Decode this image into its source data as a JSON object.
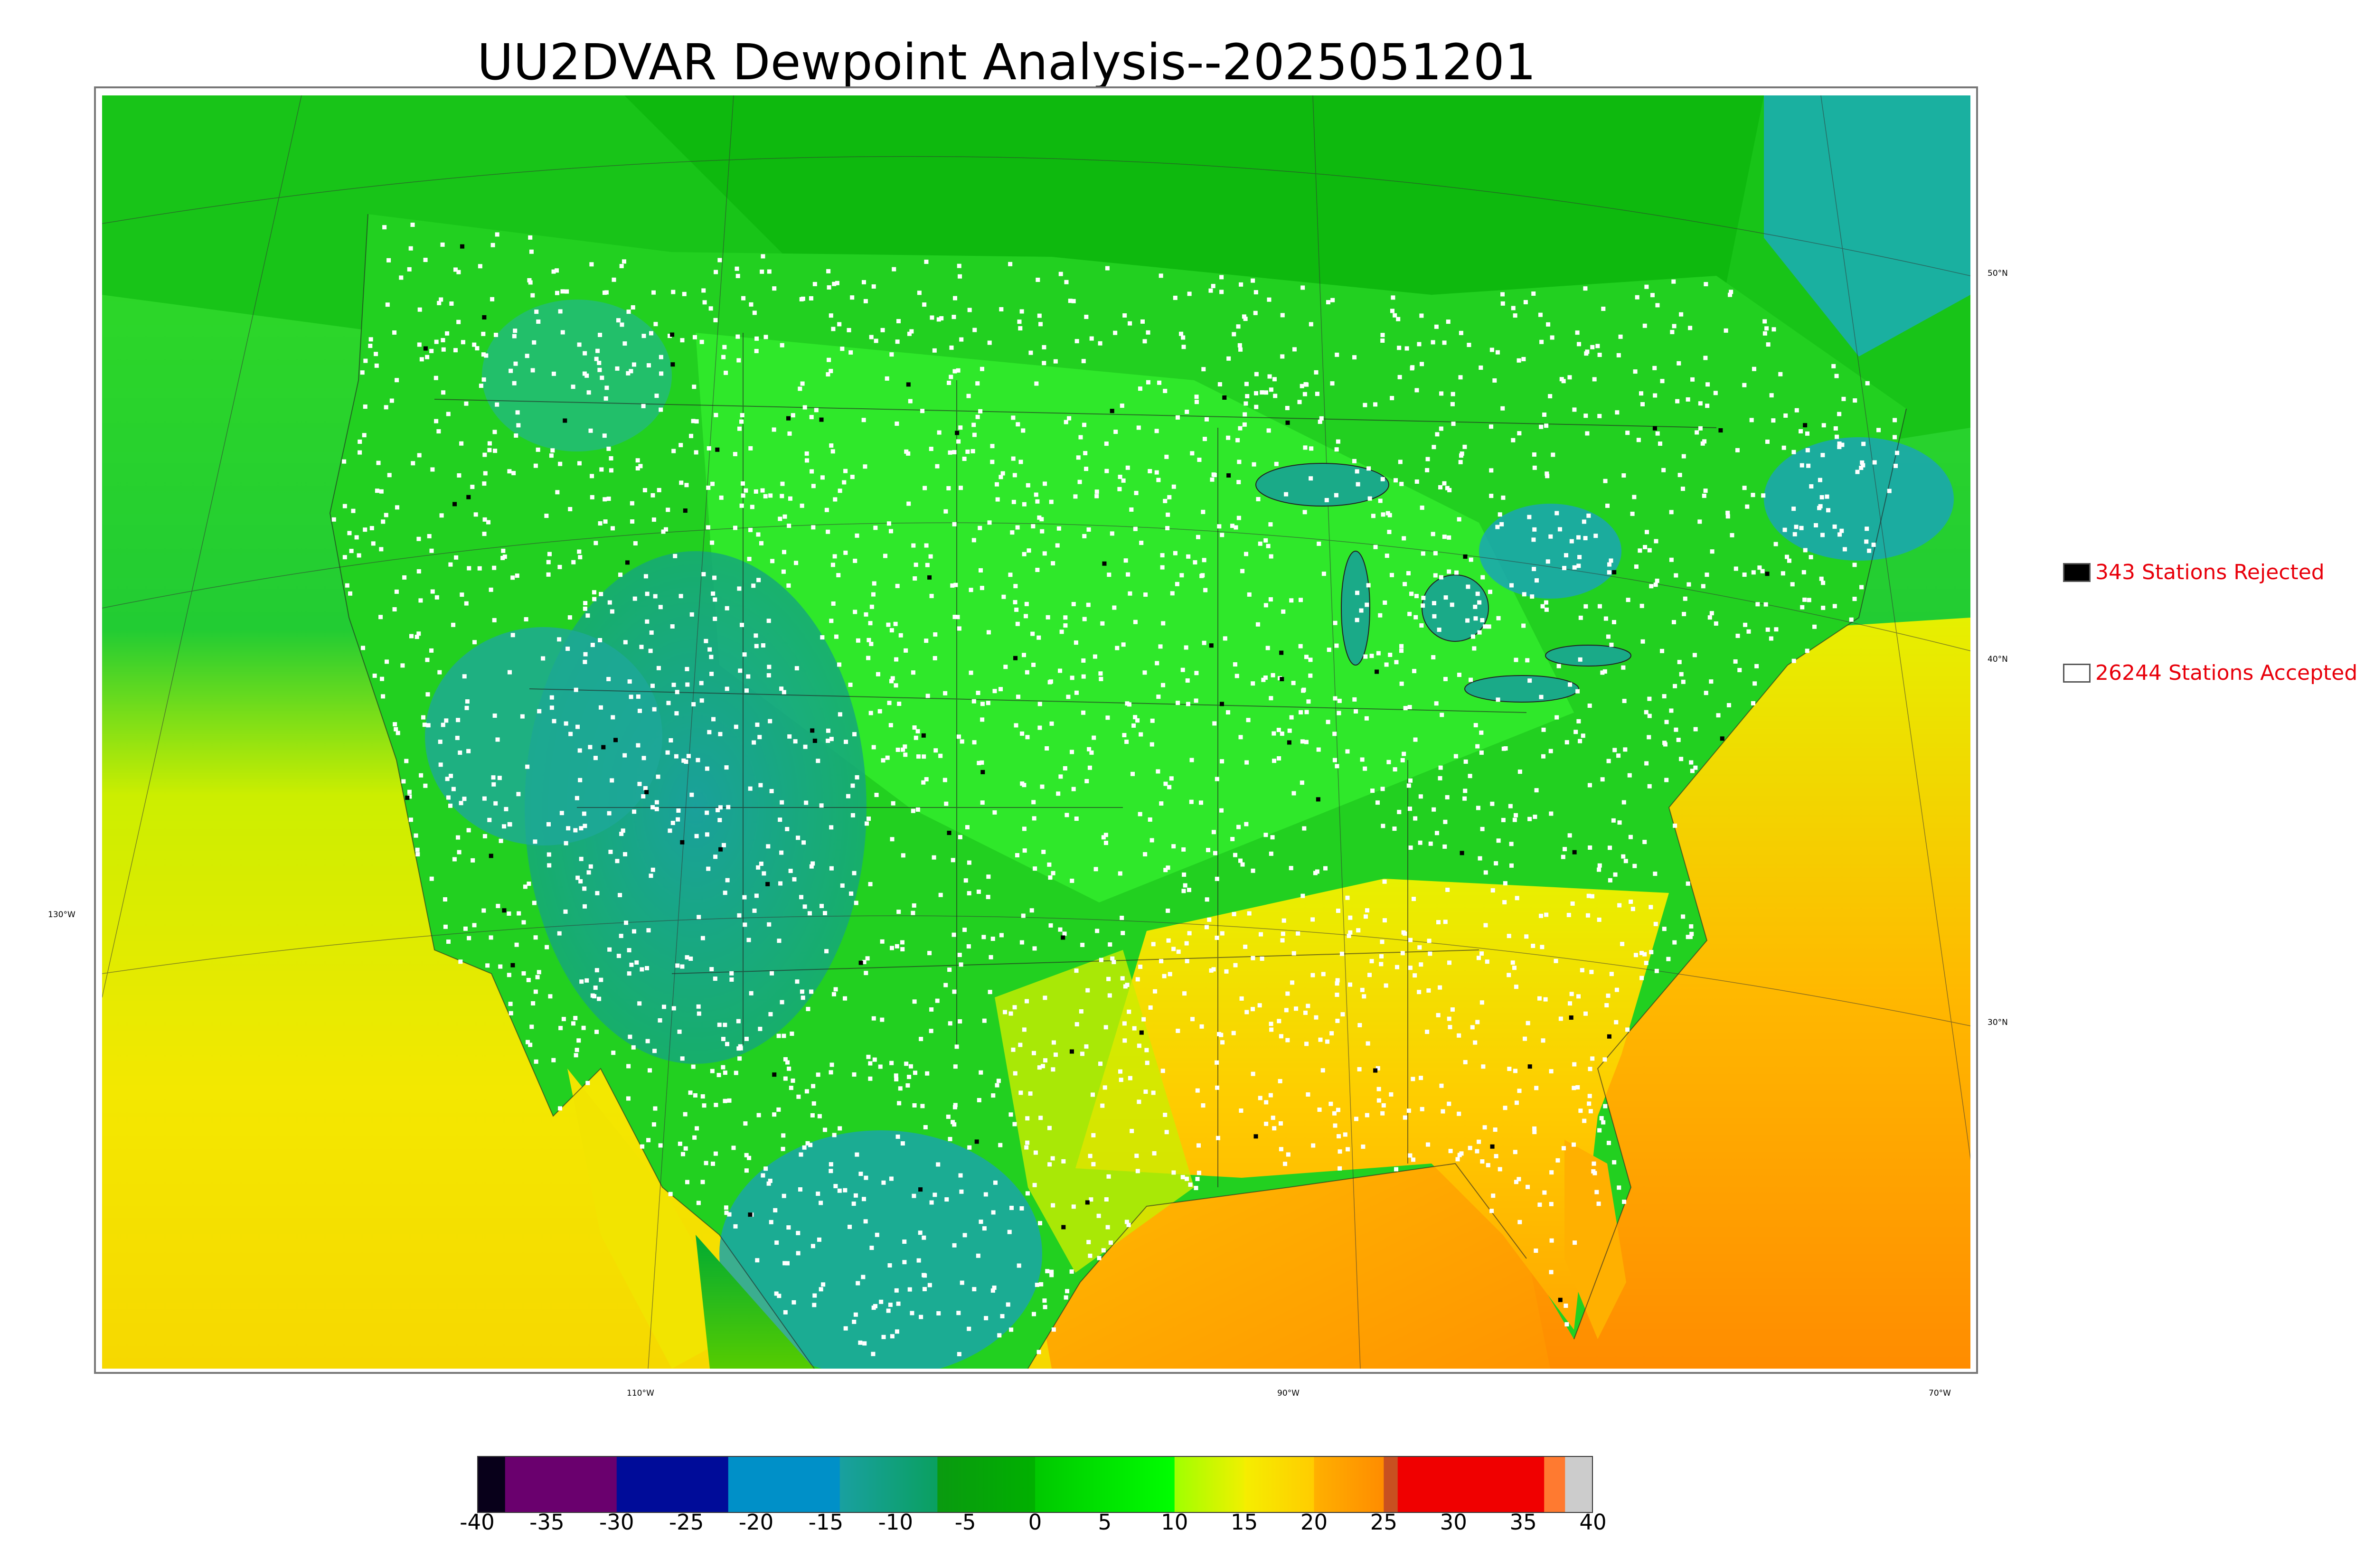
{
  "title": "UU2DVAR Dewpoint Analysis--2025051201",
  "map": {
    "lon_labels": [
      "110°W",
      "90°W",
      "70°W"
    ],
    "lat_labels": [
      "50°N",
      "40°N",
      "30°N"
    ],
    "left_lon_label": "130°W",
    "fill_colors": {
      "ocean_warm": "#ff9f00",
      "gulf": "#ffa500",
      "pacific": "#e8ef00",
      "green": "#00cc22",
      "bright_green": "#00ff00",
      "teal": "#1aa09a",
      "canada": "#11bb11"
    },
    "station_colors": {
      "accepted": "#ffffff",
      "rejected": "#000000"
    }
  },
  "legend": {
    "rejected": {
      "label": "343 Stations Rejected",
      "swatch": "#000000"
    },
    "accepted": {
      "label": "26244 Stations Accepted",
      "swatch": "#ffffff"
    }
  },
  "colorbar": {
    "ticks": [
      "-40",
      "-35",
      "-30",
      "-25",
      "-20",
      "-15",
      "-10",
      "-5",
      "0",
      "5",
      "10",
      "15",
      "20",
      "25",
      "30",
      "35",
      "40"
    ],
    "range": [
      -40,
      40
    ],
    "segments": [
      {
        "from": -40,
        "to": -38,
        "color": "#08001a"
      },
      {
        "from": -38,
        "to": -30,
        "color": "#6a006e"
      },
      {
        "from": -30,
        "to": -22,
        "color": "#000c99"
      },
      {
        "from": -22,
        "to": -14,
        "color": "#0090c8"
      },
      {
        "from": -14,
        "to": -7,
        "color": "#19a0a0",
        "to_color": "#0aa060"
      },
      {
        "from": -7,
        "to": 0,
        "color": "#0a9a10",
        "to_color": "#00b000"
      },
      {
        "from": 0,
        "to": 10,
        "color": "#00c800",
        "to_color": "#00ff00"
      },
      {
        "from": 10,
        "to": 15,
        "color": "#a0ff00",
        "to_color": "#f0f000"
      },
      {
        "from": 15,
        "to": 20,
        "color": "#f5ee00",
        "to_color": "#ffcc00"
      },
      {
        "from": 20,
        "to": 25,
        "color": "#ffb000",
        "to_color": "#ff8c00"
      },
      {
        "from": 25,
        "to": 26,
        "color": "#c85020"
      },
      {
        "from": 26,
        "to": 36.5,
        "color": "#f00000"
      },
      {
        "from": 36.5,
        "to": 38,
        "color": "#ff7a30"
      },
      {
        "from": 38,
        "to": 40,
        "color": "#cccccc"
      }
    ]
  }
}
